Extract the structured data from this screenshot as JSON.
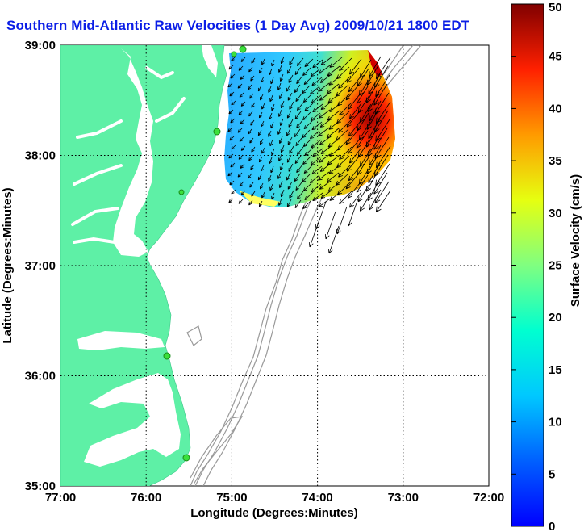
{
  "title": "Southern Mid-Atlantic Raw Velocities (1 Day Avg) 2009/10/21 1800 EDT",
  "x_axis": {
    "label": "Longitude (Degrees:Minutes)",
    "ticks": [
      "77:00",
      "76:00",
      "75:00",
      "74:00",
      "73:00",
      "72:00"
    ],
    "range": [
      -77,
      -72
    ]
  },
  "y_axis": {
    "label": "Latitude (Degrees:Minutes)",
    "ticks": [
      "39:00",
      "38:00",
      "37:00",
      "36:00",
      "35:00"
    ],
    "range": [
      35,
      39
    ]
  },
  "colorbar": {
    "label": "Surface Velocity (cm/s)",
    "ticks": [
      "50",
      "45",
      "40",
      "35",
      "30",
      "25",
      "20",
      "15",
      "10",
      "5",
      "0"
    ],
    "range": [
      0,
      50
    ],
    "colormap": "jet"
  },
  "grid": true,
  "colors": {
    "land": "#5ef0a6",
    "title": "#0b1ee6",
    "bathymetry": "#999999",
    "station": "#3be03b"
  }
}
